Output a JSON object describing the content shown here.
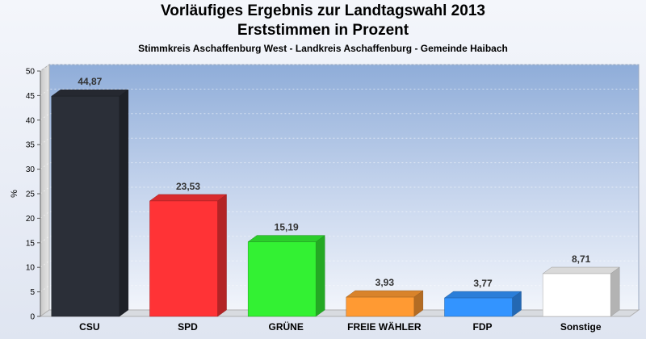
{
  "header": {
    "title_line1": "Vorläufiges Ergebnis zur Landtagswahl 2013",
    "title_line2": "Erststimmen in Prozent",
    "subtitle": "Stimmkreis Aschaffenburg West - Landkreis Aschaffenburg - Gemeinde Haibach"
  },
  "chart_data": {
    "type": "bar",
    "title": "Vorläufiges Ergebnis zur Landtagswahl 2013 / Erststimmen in Prozent",
    "subtitle": "Stimmkreis Aschaffenburg West - Landkreis Aschaffenburg - Gemeinde Haibach",
    "ylabel": "%",
    "xlabel": "",
    "ylim": [
      0,
      50
    ],
    "yticks": [
      0,
      5,
      10,
      15,
      20,
      25,
      30,
      35,
      40,
      45,
      50
    ],
    "grid": true,
    "categories": [
      "CSU",
      "SPD",
      "GRÜNE",
      "FREIE WÄHLER",
      "FDP",
      "Sonstige"
    ],
    "values": [
      44.87,
      23.53,
      15.19,
      3.93,
      3.77,
      8.71
    ],
    "value_labels": [
      "44,87",
      "23,53",
      "15,19",
      "3,93",
      "3,77",
      "8,71"
    ],
    "colors": [
      "#2b2f38",
      "#ff3336",
      "#33f133",
      "#ff9a33",
      "#3394ff",
      "#ffffff"
    ]
  }
}
